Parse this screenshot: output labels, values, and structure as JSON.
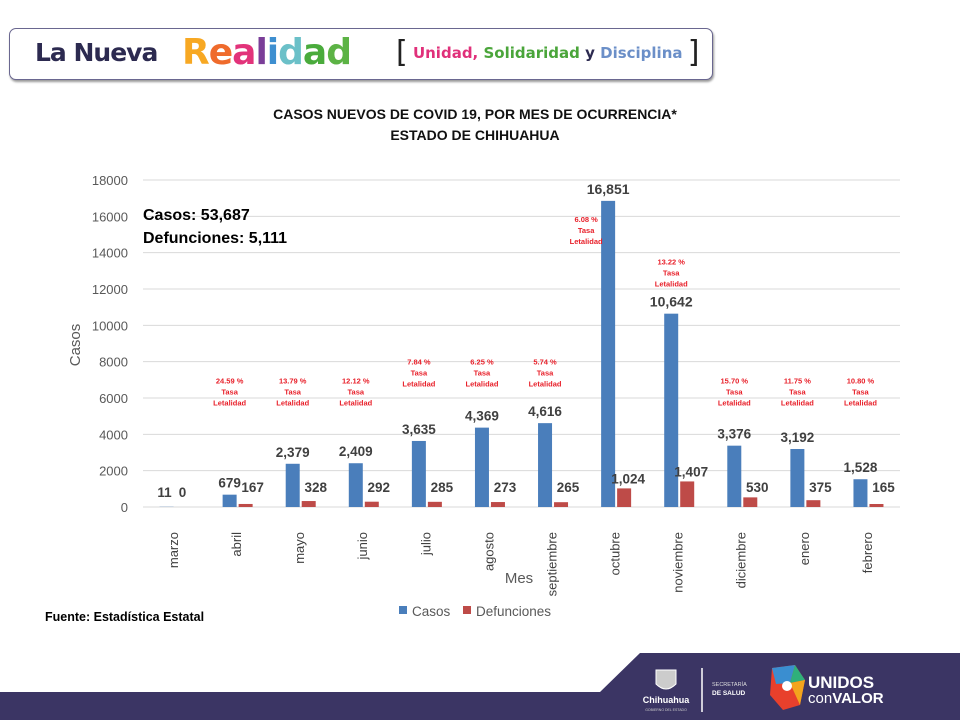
{
  "banner": {
    "part1": "La Nueva",
    "part2": "Realidad",
    "tag_word1": "Unidad,",
    "tag_word2": "Solidaridad",
    "tag_word3": "y",
    "tag_word4": "Disciplina"
  },
  "title_line1": "CASOS NUEVOS DE COVID 19, POR MES DE OCURRENCIA*",
  "title_line2": "ESTADO DE CHIHUAHUA",
  "source": "Fuente: Estadística Estatal",
  "footer": {
    "logo1": "Chihuahua",
    "logo1_sub": "GOBIERNO DEL ESTADO",
    "logo2_line1": "SECRETARÍA",
    "logo2_line2": "DE SALUD",
    "logo3_line1": "UNIDOS",
    "logo3_line2a": "con",
    "logo3_line2b": "VALOR",
    "background": "#3b3564"
  },
  "chart_data": {
    "type": "bar",
    "title": "CASOS NUEVOS DE COVID 19, POR MES DE OCURRENCIA* ESTADO DE CHIHUAHUA",
    "xlabel": "Mes",
    "ylabel": "Casos",
    "ylim": [
      0,
      18000
    ],
    "yticks": [
      0,
      2000,
      4000,
      6000,
      8000,
      10000,
      12000,
      14000,
      16000,
      18000
    ],
    "grid": true,
    "legend_placement": "bottom",
    "categories": [
      "marzo",
      "abril",
      "mayo",
      "junio",
      "julio",
      "agosto",
      "septiembre",
      "octubre",
      "noviembre",
      "diciembre",
      "enero",
      "febrero"
    ],
    "series": [
      {
        "name": "Casos",
        "color": "#4a7ebb",
        "values": [
          11,
          679,
          2379,
          2409,
          3635,
          4369,
          4616,
          16851,
          10642,
          3376,
          3192,
          1528
        ],
        "labels": [
          "11",
          "679",
          "2,379",
          "2,409",
          "3,635",
          "4,369",
          "4,616",
          "16,851",
          "10,642",
          "3,376",
          "3,192",
          "1,528"
        ]
      },
      {
        "name": "Defunciones",
        "color": "#be4b48",
        "values": [
          0,
          167,
          328,
          292,
          285,
          273,
          265,
          1024,
          1407,
          530,
          375,
          165
        ],
        "labels": [
          "0",
          "167",
          "328",
          "292",
          "285",
          "273",
          "265",
          "1,024",
          "1,407",
          "530",
          "375",
          "165"
        ]
      }
    ],
    "lethality_rate": [
      "",
      "24.59 %",
      "13.79 %",
      "12.12 %",
      "7.84 %",
      "6.25 %",
      "5.74 %",
      "6.08 %",
      "13.22 %",
      "15.70 %",
      "11.75 %",
      "10.80 %"
    ],
    "lethality_label_line1": "Tasa",
    "lethality_label_line2": "Letalidad",
    "lethality_color": "#e8202a",
    "annotation_casos": "Casos: 53,687",
    "annotation_defunciones": "Defunciones: 5,111"
  }
}
